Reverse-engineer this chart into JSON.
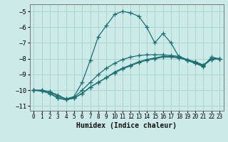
{
  "title": "",
  "xlabel": "Humidex (Indice chaleur)",
  "ylabel": "",
  "bg_color": "#cceae8",
  "line_color": "#1a7070",
  "grid_color": "#aad4d0",
  "xlim": [
    -0.5,
    23.5
  ],
  "ylim": [
    -11.3,
    -4.55
  ],
  "xticks": [
    0,
    1,
    2,
    3,
    4,
    5,
    6,
    7,
    8,
    9,
    10,
    11,
    12,
    13,
    14,
    15,
    16,
    17,
    18,
    19,
    20,
    21,
    22,
    23
  ],
  "yticks": [
    -5,
    -6,
    -7,
    -8,
    -9,
    -10,
    -11
  ],
  "series": [
    {
      "x": [
        0,
        1,
        2,
        3,
        4,
        5,
        6,
        7,
        8,
        9,
        10,
        11,
        12,
        13,
        14,
        15,
        16,
        17,
        18,
        19,
        20,
        21,
        22,
        23
      ],
      "y": [
        -10.0,
        -10.0,
        -10.1,
        -10.3,
        -10.55,
        -10.4,
        -9.5,
        -8.1,
        -6.6,
        -5.9,
        -5.2,
        -5.0,
        -5.1,
        -5.3,
        -6.0,
        -7.0,
        -6.4,
        -7.0,
        -7.9,
        -8.1,
        -8.3,
        -8.5,
        -7.9,
        -8.0
      ],
      "has_marker": true
    },
    {
      "x": [
        0,
        1,
        2,
        3,
        4,
        5,
        6,
        7,
        8,
        9,
        10,
        11,
        12,
        13,
        14,
        15,
        16,
        17,
        18,
        19,
        20,
        21,
        22,
        23
      ],
      "y": [
        -10.0,
        -10.05,
        -10.2,
        -10.5,
        -10.6,
        -10.5,
        -10.2,
        -9.8,
        -9.5,
        -9.2,
        -8.9,
        -8.65,
        -8.45,
        -8.25,
        -8.1,
        -8.0,
        -7.9,
        -7.9,
        -7.95,
        -8.1,
        -8.25,
        -8.45,
        -8.05,
        -8.0
      ],
      "has_marker": true
    },
    {
      "x": [
        0,
        1,
        2,
        3,
        4,
        5,
        6,
        7,
        8,
        9,
        10,
        11,
        12,
        13,
        14,
        15,
        16,
        17,
        18,
        19,
        20,
        21,
        22,
        23
      ],
      "y": [
        -10.0,
        -10.05,
        -10.2,
        -10.5,
        -10.6,
        -10.5,
        -10.2,
        -9.8,
        -9.5,
        -9.2,
        -8.85,
        -8.6,
        -8.4,
        -8.2,
        -8.05,
        -7.95,
        -7.85,
        -7.85,
        -7.9,
        -8.1,
        -8.2,
        -8.4,
        -8.0,
        -8.0
      ],
      "has_marker": true
    },
    {
      "x": [
        0,
        1,
        2,
        3,
        4,
        5,
        6,
        7,
        8,
        9,
        10,
        11,
        12,
        13,
        14,
        15,
        16,
        17,
        18,
        19,
        20,
        21,
        22,
        23
      ],
      "y": [
        -10.0,
        -10.0,
        -10.1,
        -10.4,
        -10.55,
        -10.45,
        -10.0,
        -9.5,
        -9.0,
        -8.6,
        -8.3,
        -8.05,
        -7.9,
        -7.8,
        -7.75,
        -7.75,
        -7.75,
        -7.8,
        -7.85,
        -8.05,
        -8.2,
        -8.4,
        -8.05,
        -8.0
      ],
      "has_marker": true
    }
  ],
  "marker": "+",
  "markersize": 4,
  "markeredgewidth": 0.9,
  "linewidth": 0.9
}
